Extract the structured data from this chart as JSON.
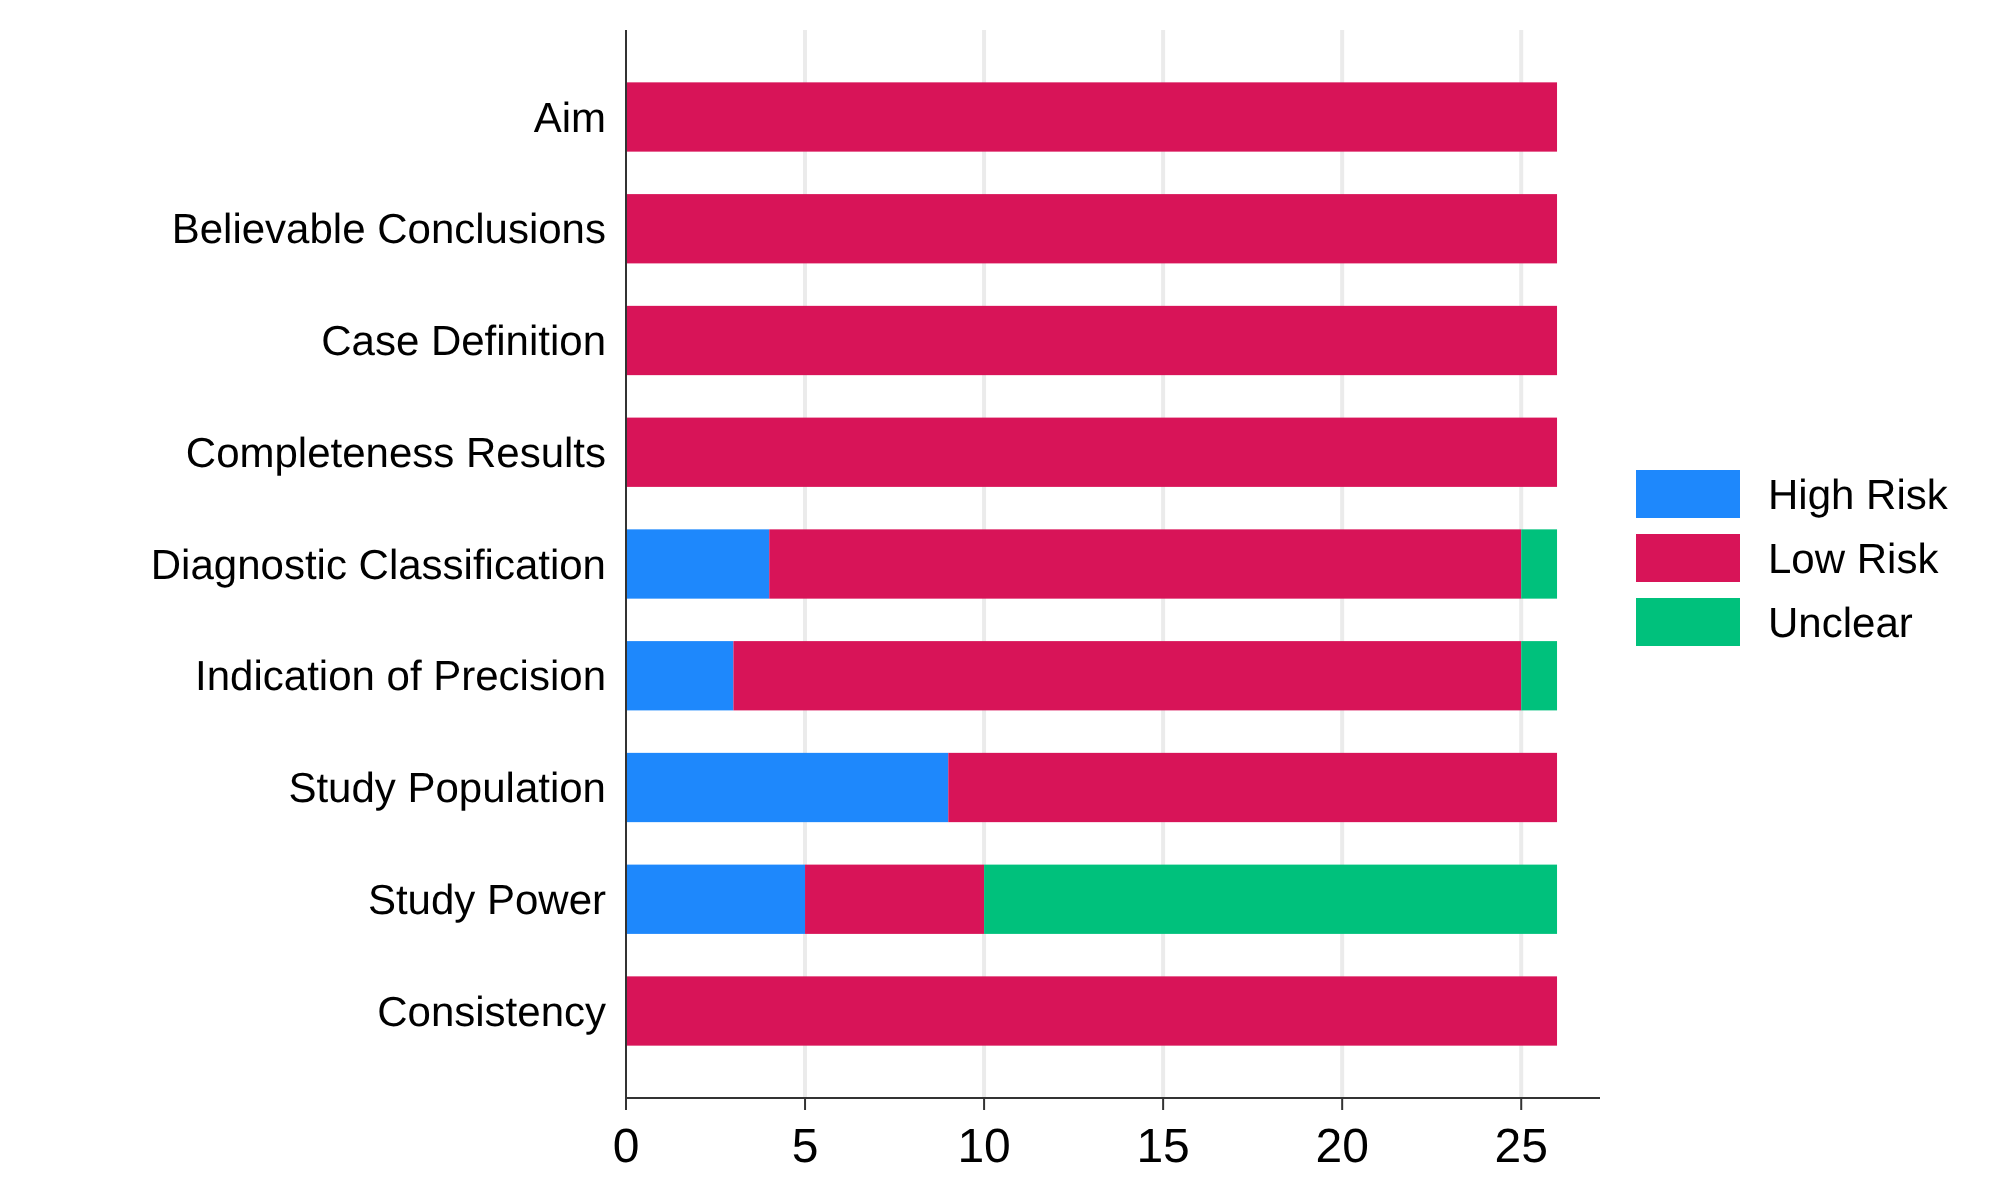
{
  "chart_data": {
    "type": "bar",
    "orientation": "horizontal",
    "stacked": true,
    "categories": [
      "Aim",
      "Believable Conclusions",
      "Case Definition",
      "Completeness Results",
      "Diagnostic Classification",
      "Indication of Precision",
      "Study Population",
      "Study Power",
      "Consistency"
    ],
    "series": [
      {
        "name": "High Risk",
        "color": "#1e88fc",
        "values": [
          0,
          0,
          0,
          0,
          4,
          3,
          9,
          5,
          0
        ]
      },
      {
        "name": "Low Risk",
        "color": "#d81458",
        "values": [
          26,
          26,
          26,
          26,
          21,
          22,
          17,
          5,
          26
        ]
      },
      {
        "name": "Unclear",
        "color": "#00c17c",
        "values": [
          0,
          0,
          0,
          0,
          1,
          1,
          0,
          16,
          0
        ]
      }
    ],
    "xlim": [
      0,
      27.2
    ],
    "xticks": [
      0,
      5,
      10,
      15,
      20,
      25
    ],
    "grid": "x",
    "legend": "right"
  }
}
